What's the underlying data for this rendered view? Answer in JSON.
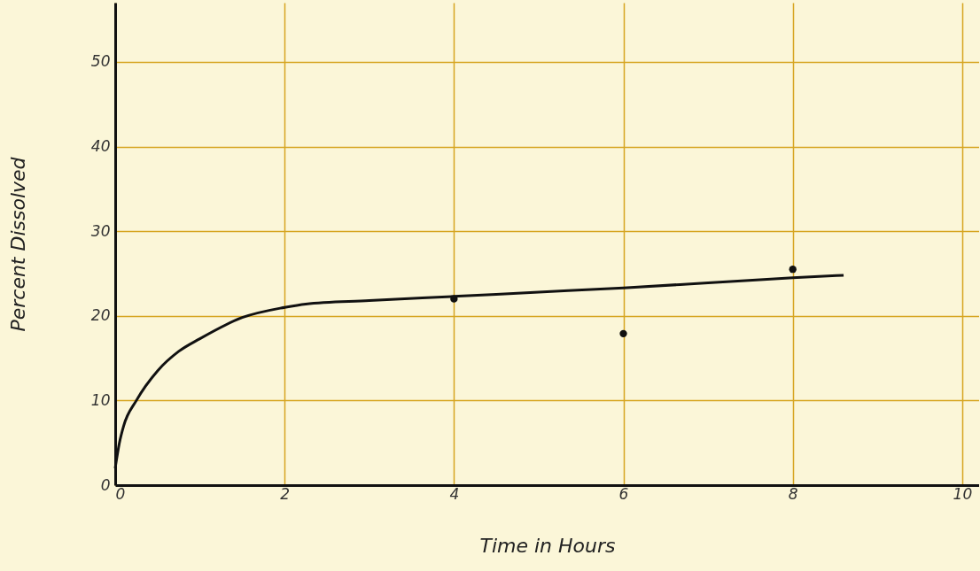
{
  "chart_data": {
    "type": "line",
    "xlabel": "Time in Hours",
    "ylabel": "Percent Dissolved",
    "xlim": [
      0,
      10.2
    ],
    "ylim": [
      0,
      57
    ],
    "xticks": [
      0,
      2,
      4,
      6,
      8,
      10
    ],
    "yticks": [
      0,
      10,
      20,
      30,
      40,
      50
    ],
    "grid": true,
    "series": [
      {
        "color": "#111111",
        "x": [
          0,
          0.05,
          0.1,
          0.25,
          0.5,
          0.75,
          1,
          1.5,
          2,
          2.25,
          3,
          4,
          5,
          6,
          7,
          8,
          8.6
        ],
        "values": [
          2,
          5,
          7,
          10,
          13.5,
          15.8,
          17.3,
          19.8,
          21,
          21.4,
          21.8,
          22.3,
          22.8,
          23.3,
          23.9,
          24.5,
          24.8
        ]
      },
      {
        "type": "scatter",
        "marker": "circle",
        "color": "#111111",
        "x": [
          4,
          6,
          8
        ],
        "values": [
          22,
          17.9,
          25.5
        ]
      }
    ]
  }
}
